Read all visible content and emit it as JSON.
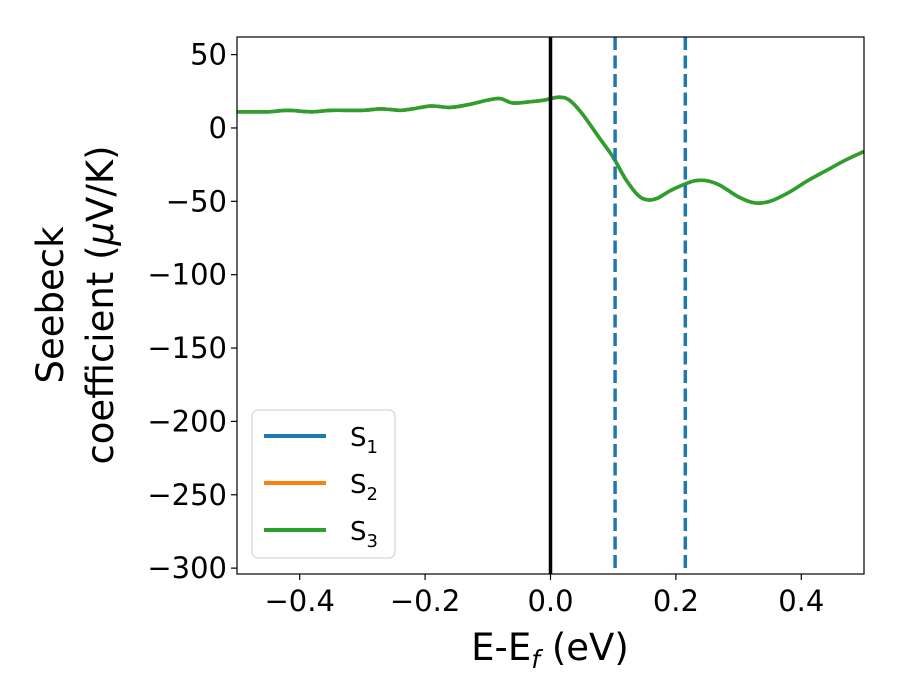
{
  "chart_data": {
    "type": "line",
    "xlabel": {
      "main": "E-E",
      "sub": "f",
      "tail": " (eV)"
    },
    "ylabel": {
      "line1": "Seebeck",
      "line2_pre": "coefficient  (",
      "mu": "μ",
      "line2_post": "V/K)"
    },
    "xlim": [
      -0.5,
      0.5
    ],
    "ylim": [
      -304,
      62
    ],
    "xticks": [
      -0.4,
      -0.2,
      0.0,
      0.2,
      0.4
    ],
    "xtick_labels": [
      "−0.4",
      "−0.2",
      "0.0",
      "0.2",
      "0.4"
    ],
    "yticks": [
      50,
      0,
      -50,
      -100,
      -150,
      -200,
      -250,
      -300
    ],
    "ytick_labels": [
      "50",
      "0",
      "−50",
      "−100",
      "−150",
      "−200",
      "−250",
      "−300"
    ],
    "vlines": [
      {
        "x": 0.0,
        "style": "solid",
        "color": "#000000"
      },
      {
        "x": 0.103,
        "style": "dashed",
        "color": "#1f77b4"
      },
      {
        "x": 0.215,
        "style": "dashed",
        "color": "#1f77b4"
      }
    ],
    "legend_position": "lower-left",
    "series": [
      {
        "name": "S",
        "sub": "1",
        "color": "#1f77b4",
        "x": [
          -0.5,
          -0.45,
          -0.42,
          -0.38,
          -0.35,
          -0.3,
          -0.27,
          -0.24,
          -0.22,
          -0.19,
          -0.16,
          -0.13,
          -0.1,
          -0.08,
          -0.06,
          -0.03,
          -0.01,
          0.0,
          0.015,
          0.03,
          0.05,
          0.08,
          0.1,
          0.12,
          0.14,
          0.155,
          0.17,
          0.19,
          0.21,
          0.23,
          0.25,
          0.27,
          0.3,
          0.325,
          0.35,
          0.38,
          0.41,
          0.44,
          0.47,
          0.5
        ],
        "y": [
          11,
          11,
          12,
          11,
          12,
          12,
          13,
          12,
          13,
          15,
          14,
          16,
          19,
          20,
          17,
          18,
          19,
          20,
          21,
          19,
          10,
          -8,
          -20,
          -35,
          -46,
          -49,
          -48,
          -43,
          -39,
          -36,
          -36,
          -39,
          -47,
          -51,
          -50,
          -44,
          -36,
          -29,
          -22,
          -16
        ]
      },
      {
        "name": "S",
        "sub": "2",
        "color": "#ff7f0e",
        "x": [
          -0.5,
          -0.45,
          -0.42,
          -0.38,
          -0.35,
          -0.3,
          -0.27,
          -0.24,
          -0.22,
          -0.19,
          -0.16,
          -0.13,
          -0.1,
          -0.08,
          -0.06,
          -0.03,
          -0.01,
          0.0,
          0.015,
          0.03,
          0.05,
          0.08,
          0.1,
          0.12,
          0.14,
          0.155,
          0.17,
          0.19,
          0.21,
          0.23,
          0.25,
          0.27,
          0.3,
          0.325,
          0.35,
          0.38,
          0.41,
          0.44,
          0.47,
          0.5
        ],
        "y": [
          11,
          11,
          12,
          11,
          12,
          12,
          13,
          12,
          13,
          15,
          14,
          16,
          19,
          20,
          17,
          18,
          19,
          20,
          21,
          19,
          10,
          -8,
          -20,
          -35,
          -46,
          -49,
          -48,
          -43,
          -39,
          -36,
          -36,
          -39,
          -47,
          -51,
          -50,
          -44,
          -36,
          -29,
          -22,
          -16
        ]
      },
      {
        "name": "S",
        "sub": "3",
        "color": "#2ca02c",
        "x": [
          -0.5,
          -0.45,
          -0.42,
          -0.38,
          -0.35,
          -0.3,
          -0.27,
          -0.24,
          -0.22,
          -0.19,
          -0.16,
          -0.13,
          -0.1,
          -0.08,
          -0.06,
          -0.03,
          -0.01,
          0.0,
          0.015,
          0.03,
          0.05,
          0.08,
          0.1,
          0.12,
          0.14,
          0.155,
          0.17,
          0.19,
          0.21,
          0.23,
          0.25,
          0.27,
          0.3,
          0.325,
          0.35,
          0.38,
          0.41,
          0.44,
          0.47,
          0.5
        ],
        "y": [
          11,
          11,
          12,
          11,
          12,
          12,
          13,
          12,
          13,
          15,
          14,
          16,
          19,
          20,
          17,
          18,
          19,
          20,
          21,
          19,
          10,
          -8,
          -20,
          -35,
          -46,
          -49,
          -48,
          -43,
          -39,
          -36,
          -36,
          -39,
          -47,
          -51,
          -50,
          -44,
          -36,
          -29,
          -22,
          -16
        ]
      }
    ]
  }
}
